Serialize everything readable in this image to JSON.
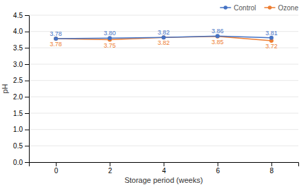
{
  "chart_data": {
    "type": "line",
    "xlabel": "Storage period (weeks)",
    "ylabel": "pH",
    "x": [
      0,
      2,
      4,
      6,
      8
    ],
    "xlim": [
      -1,
      9
    ],
    "xticks": [
      0,
      2,
      4,
      6,
      8
    ],
    "ylim": [
      0,
      4.5
    ],
    "yticks": [
      {
        "value": 0,
        "label": "0.0"
      },
      0.5,
      {
        "value": 1,
        "label": "1.0"
      },
      1.5,
      {
        "value": 2,
        "label": "2.0"
      },
      2.5,
      {
        "value": 3,
        "label": "3.0"
      },
      3.5,
      {
        "value": 4,
        "label": "4.0"
      },
      4.5
    ],
    "grid": true,
    "legend": "upper right",
    "data_labels": true,
    "marker": "circle",
    "series": [
      {
        "name": "Control",
        "color": "#4472C4",
        "values": [
          3.78,
          3.8,
          3.82,
          3.86,
          3.81
        ],
        "value_labels": [
          "3.78",
          "3.80",
          "3.82",
          "3.86",
          "3.81"
        ],
        "error": [
          0.018,
          0.015,
          0.02,
          0.03,
          0.018
        ]
      },
      {
        "name": "Ozone",
        "color": "#ED7D31",
        "values": [
          3.78,
          3.75,
          3.82,
          3.85,
          3.72
        ],
        "value_labels": [
          "3.78",
          "3.75",
          "3.82",
          "3.85",
          "3.72"
        ],
        "error": [
          0.015,
          0.018,
          0.022,
          0.018,
          0.018
        ]
      }
    ]
  }
}
